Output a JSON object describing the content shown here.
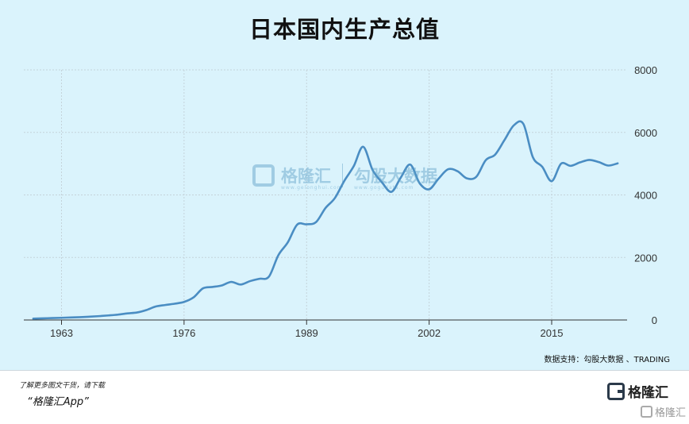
{
  "chart_data": {
    "type": "line",
    "title": "日本国内生产总值",
    "xlabel": "",
    "ylabel": "",
    "x_ticks": [
      "1963",
      "1976",
      "1989",
      "2002",
      "2015"
    ],
    "y_ticks": [
      "0",
      "2000",
      "4000",
      "6000",
      "8000"
    ],
    "xlim": [
      1959,
      2023
    ],
    "ylim": [
      0,
      8000
    ],
    "grid": true,
    "line_color": "#4a8dc3",
    "series": [
      {
        "name": "",
        "x": [
          1960,
          1961,
          1962,
          1963,
          1964,
          1965,
          1966,
          1967,
          1968,
          1969,
          1970,
          1971,
          1972,
          1973,
          1974,
          1975,
          1976,
          1977,
          1978,
          1979,
          1980,
          1981,
          1982,
          1983,
          1984,
          1985,
          1986,
          1987,
          1988,
          1989,
          1990,
          1991,
          1992,
          1993,
          1994,
          1995,
          1996,
          1997,
          1998,
          1999,
          2000,
          2001,
          2002,
          2003,
          2004,
          2005,
          2006,
          2007,
          2008,
          2009,
          2010,
          2011,
          2012,
          2013,
          2014,
          2015,
          2016,
          2017,
          2018,
          2019,
          2020,
          2021,
          2022
        ],
        "values": [
          44,
          53,
          61,
          70,
          82,
          91,
          106,
          124,
          146,
          172,
          212,
          240,
          318,
          432,
          480,
          521,
          577,
          721,
          1011,
          1055,
          1105,
          1218,
          1134,
          1243,
          1318,
          1385,
          2070,
          2480,
          3050,
          3060,
          3130,
          3580,
          3900,
          4450,
          4920,
          5540,
          4800,
          4400,
          4100,
          4560,
          4970,
          4370,
          4180,
          4520,
          4820,
          4760,
          4530,
          4580,
          5110,
          5290,
          5760,
          6230,
          6270,
          5210,
          4900,
          4440,
          5000,
          4930,
          5040,
          5120,
          5050,
          4940,
          5010
        ]
      }
    ]
  },
  "source_text": "数据支持：勾股大数据 、TRADING",
  "watermark": {
    "brand": "格隆汇",
    "brand_sub": "www.gelonghui.com",
    "data_brand": "勾股大数据",
    "data_sub": "www.gogudata.com"
  },
  "footer": {
    "line1": "了解更多图文干货，请下载",
    "line2": "“格隆汇App”",
    "brand": "格隆汇",
    "corner_mark": "格隆汇"
  }
}
